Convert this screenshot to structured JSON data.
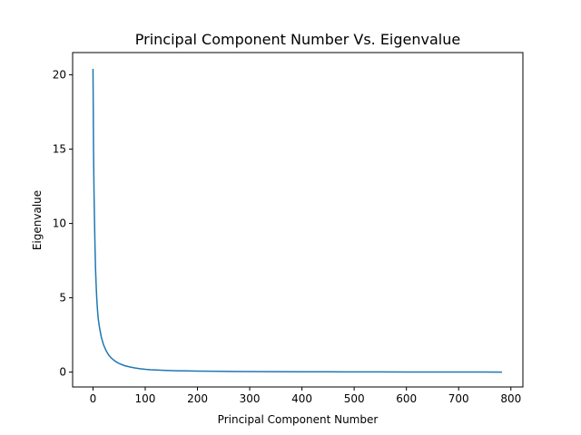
{
  "chart_data": {
    "type": "line",
    "title": "Principal Component Number Vs. Eigenvalue",
    "xlabel": "Principal Component Number",
    "ylabel": "Eigenvalue",
    "xlim": [
      -39,
      823
    ],
    "ylim": [
      -1.0,
      21.5
    ],
    "x_ticks": [
      0,
      100,
      200,
      300,
      400,
      500,
      600,
      700,
      800
    ],
    "y_ticks": [
      0,
      5,
      10,
      15,
      20
    ],
    "grid": false,
    "legend": "none",
    "series": [
      {
        "color": "#1f77b4",
        "x": [
          0,
          1,
          2,
          3,
          4,
          5,
          6,
          7,
          8,
          9,
          10,
          12,
          14,
          16,
          18,
          20,
          25,
          30,
          35,
          40,
          45,
          50,
          60,
          70,
          80,
          90,
          100,
          110,
          120,
          140,
          160,
          180,
          200,
          250,
          300,
          350,
          400,
          450,
          500,
          550,
          600,
          650,
          700,
          750,
          783
        ],
        "y": [
          20.4,
          15.0,
          12.0,
          10.0,
          8.2,
          6.8,
          5.9,
          5.1,
          4.5,
          4.0,
          3.6,
          3.1,
          2.7,
          2.35,
          2.1,
          1.85,
          1.45,
          1.15,
          0.95,
          0.8,
          0.68,
          0.58,
          0.44,
          0.35,
          0.28,
          0.23,
          0.19,
          0.16,
          0.14,
          0.11,
          0.09,
          0.08,
          0.07,
          0.05,
          0.04,
          0.03,
          0.025,
          0.02,
          0.015,
          0.012,
          0.01,
          0.008,
          0.006,
          0.004,
          0.002
        ]
      }
    ]
  }
}
